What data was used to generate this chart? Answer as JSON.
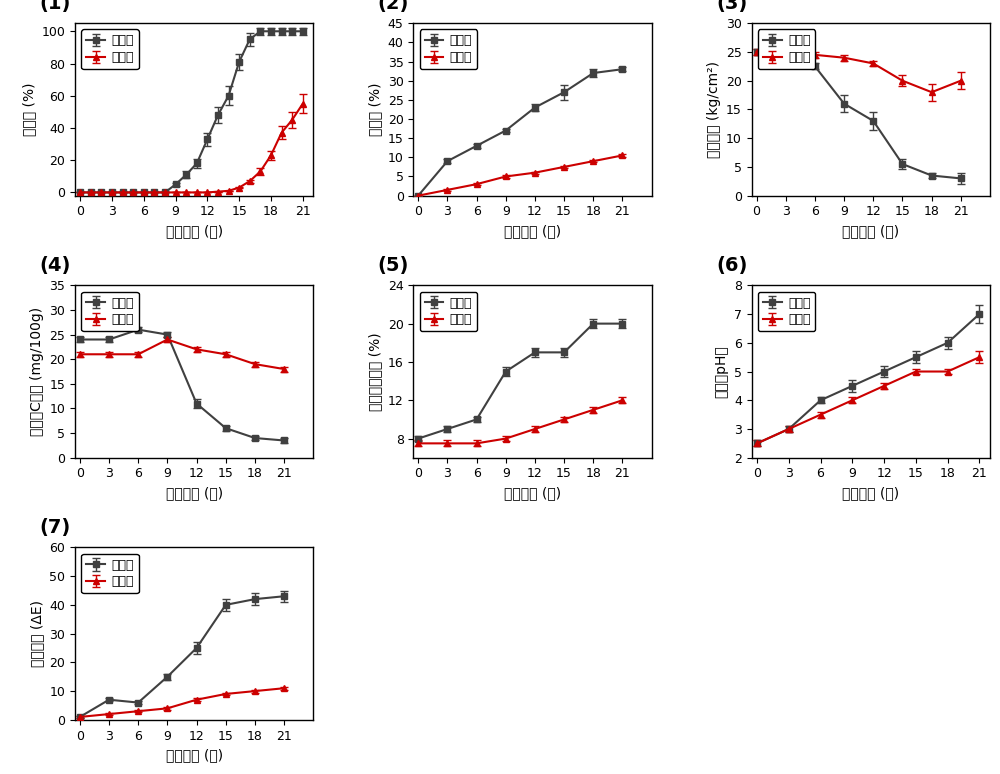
{
  "p1": {
    "title": "(1)",
    "xlabel": "储藏时间 (天)",
    "ylabel": "腐烂率 (%)",
    "xlim": [
      -0.5,
      22
    ],
    "ylim": [
      -2,
      105
    ],
    "xticks": [
      0,
      3,
      6,
      9,
      12,
      15,
      18,
      21
    ],
    "yticks": [
      0,
      20,
      40,
      60,
      80,
      100
    ],
    "ctrl_x": [
      0,
      1,
      2,
      3,
      4,
      5,
      6,
      7,
      8,
      9,
      10,
      11,
      12,
      13,
      14,
      15,
      16,
      17,
      18,
      19,
      20,
      21
    ],
    "ctrl_y": [
      0,
      0,
      0,
      0,
      0,
      0,
      0,
      0,
      0,
      5,
      11,
      18,
      33,
      48,
      60,
      81,
      95,
      100,
      100,
      100,
      100,
      100
    ],
    "ctrl_err": [
      0,
      0,
      0,
      0,
      0,
      0,
      0,
      0,
      0,
      1,
      2,
      3,
      4,
      5,
      6,
      5,
      4,
      2,
      2,
      2,
      2,
      2
    ],
    "fresh_x": [
      0,
      1,
      2,
      3,
      4,
      5,
      6,
      7,
      8,
      9,
      10,
      11,
      12,
      13,
      14,
      15,
      16,
      17,
      18,
      19,
      20,
      21
    ],
    "fresh_y": [
      0,
      0,
      0,
      0,
      0,
      0,
      0,
      0,
      0,
      0,
      0,
      0,
      0,
      0.5,
      1,
      3,
      7,
      13,
      23,
      37,
      45,
      55
    ],
    "fresh_err": [
      0,
      0,
      0,
      0,
      0,
      0,
      0,
      0,
      0,
      0,
      0,
      0,
      0,
      0,
      0,
      0.5,
      1,
      2,
      3,
      4,
      5,
      6
    ]
  },
  "p2": {
    "title": "(2)",
    "xlabel": "储藏时间 (天)",
    "ylabel": "失重率 (%)",
    "xlim": [
      -0.5,
      24
    ],
    "ylim": [
      0,
      45
    ],
    "xticks": [
      0,
      3,
      6,
      9,
      12,
      15,
      18,
      21
    ],
    "yticks": [
      0,
      5,
      10,
      15,
      20,
      25,
      30,
      35,
      40,
      45
    ],
    "ctrl_x": [
      0,
      3,
      6,
      9,
      12,
      15,
      18,
      21
    ],
    "ctrl_y": [
      0,
      9,
      13,
      17,
      23,
      27,
      32,
      33
    ],
    "ctrl_err": [
      0,
      0.5,
      0.5,
      0.5,
      1,
      2,
      1,
      0.5
    ],
    "fresh_x": [
      0,
      3,
      6,
      9,
      12,
      15,
      18,
      21
    ],
    "fresh_y": [
      0,
      1.5,
      3,
      5,
      6,
      7.5,
      9,
      10.5
    ],
    "fresh_err": [
      0,
      0.3,
      0.3,
      0.3,
      0.3,
      0.3,
      0.3,
      0.3
    ]
  },
  "p3": {
    "title": "(3)",
    "xlabel": "储藏时间 (天)",
    "ylabel": "芒果硬度 (kg/cm²)",
    "xlim": [
      -0.5,
      24
    ],
    "ylim": [
      0,
      30
    ],
    "xticks": [
      0,
      3,
      6,
      9,
      12,
      15,
      18,
      21
    ],
    "yticks": [
      0,
      5,
      10,
      15,
      20,
      25,
      30
    ],
    "ctrl_x": [
      0,
      3,
      6,
      9,
      12,
      15,
      18,
      21
    ],
    "ctrl_y": [
      25,
      23,
      22.5,
      16,
      13,
      5.5,
      3.5,
      3
    ],
    "ctrl_err": [
      0.5,
      0.5,
      0.5,
      1.5,
      1.5,
      0.8,
      0.5,
      1.0
    ],
    "fresh_x": [
      0,
      3,
      6,
      9,
      12,
      15,
      18,
      21
    ],
    "fresh_y": [
      25,
      24.5,
      24.5,
      24,
      23,
      20,
      18,
      20
    ],
    "fresh_err": [
      0.5,
      0.5,
      0.5,
      0.5,
      0.5,
      1.0,
      1.5,
      1.5
    ]
  },
  "p4": {
    "title": "(4)",
    "xlabel": "储藏时间 (天)",
    "ylabel": "维生素C含量 (mg/100g)",
    "xlim": [
      -0.5,
      24
    ],
    "ylim": [
      0,
      35
    ],
    "xticks": [
      0,
      3,
      6,
      9,
      12,
      15,
      18,
      21
    ],
    "yticks": [
      0,
      5,
      10,
      15,
      20,
      25,
      30,
      35
    ],
    "ctrl_x": [
      0,
      3,
      6,
      9,
      12,
      15,
      18,
      21
    ],
    "ctrl_y": [
      24,
      24,
      26,
      25,
      11,
      6,
      4,
      3.5
    ],
    "ctrl_err": [
      0.5,
      0.5,
      0.5,
      0.5,
      1,
      0.5,
      0.5,
      0.5
    ],
    "fresh_x": [
      0,
      3,
      6,
      9,
      12,
      15,
      18,
      21
    ],
    "fresh_y": [
      21,
      21,
      21,
      24,
      22,
      21,
      19,
      18
    ],
    "fresh_err": [
      0.5,
      0.5,
      0.5,
      0.5,
      0.5,
      0.5,
      0.5,
      0.5
    ]
  },
  "p5": {
    "title": "(5)",
    "xlabel": "储藏时间 (天)",
    "ylabel": "可溶性固含物 (%)",
    "xlim": [
      -0.5,
      24
    ],
    "ylim": [
      6,
      24
    ],
    "xticks": [
      0,
      3,
      6,
      9,
      12,
      15,
      18,
      21
    ],
    "yticks": [
      8,
      12,
      16,
      20,
      24
    ],
    "ctrl_x": [
      0,
      3,
      6,
      9,
      12,
      15,
      18,
      21
    ],
    "ctrl_y": [
      8,
      9,
      10,
      15,
      17,
      17,
      20,
      20
    ],
    "ctrl_err": [
      0.3,
      0.3,
      0.3,
      0.5,
      0.5,
      0.5,
      0.5,
      0.5
    ],
    "fresh_x": [
      0,
      3,
      6,
      9,
      12,
      15,
      18,
      21
    ],
    "fresh_y": [
      7.5,
      7.5,
      7.5,
      8,
      9,
      10,
      11,
      12
    ],
    "fresh_err": [
      0.3,
      0.3,
      0.3,
      0.3,
      0.3,
      0.3,
      0.3,
      0.3
    ]
  },
  "p6": {
    "title": "(6)",
    "xlabel": "储藏时间 (天)",
    "ylabel": "果肉的pH值",
    "xlim": [
      -0.5,
      22
    ],
    "ylim": [
      2,
      8
    ],
    "xticks": [
      0,
      3,
      6,
      9,
      12,
      15,
      18,
      21
    ],
    "yticks": [
      2,
      3,
      4,
      5,
      6,
      7,
      8
    ],
    "ctrl_x": [
      0,
      3,
      6,
      9,
      12,
      15,
      18,
      21
    ],
    "ctrl_y": [
      2.5,
      3,
      4,
      4.5,
      5,
      5.5,
      6,
      7
    ],
    "ctrl_err": [
      0.1,
      0.1,
      0.1,
      0.2,
      0.2,
      0.2,
      0.2,
      0.3
    ],
    "fresh_x": [
      0,
      3,
      6,
      9,
      12,
      15,
      18,
      21
    ],
    "fresh_y": [
      2.5,
      3,
      3.5,
      4,
      4.5,
      5,
      5,
      5.5
    ],
    "fresh_err": [
      0.1,
      0.1,
      0.1,
      0.1,
      0.1,
      0.1,
      0.1,
      0.2
    ]
  },
  "p7": {
    "title": "(7)",
    "xlabel": "储藏时间 (天)",
    "ylabel": "芒果褐变 (ΔE)",
    "xlim": [
      -0.5,
      24
    ],
    "ylim": [
      0,
      60
    ],
    "xticks": [
      0,
      3,
      6,
      9,
      12,
      15,
      18,
      21
    ],
    "yticks": [
      0,
      10,
      20,
      30,
      40,
      50,
      60
    ],
    "ctrl_x": [
      0,
      3,
      6,
      9,
      12,
      15,
      18,
      21
    ],
    "ctrl_y": [
      1,
      7,
      6,
      15,
      25,
      40,
      42,
      43
    ],
    "ctrl_err": [
      0.2,
      0.5,
      0.5,
      1,
      2,
      2,
      2,
      2
    ],
    "fresh_x": [
      0,
      3,
      6,
      9,
      12,
      15,
      18,
      21
    ],
    "fresh_y": [
      1,
      2,
      3,
      4,
      7,
      9,
      10,
      11
    ],
    "fresh_err": [
      0.2,
      0.2,
      0.3,
      0.5,
      0.5,
      0.5,
      0.5,
      0.5
    ]
  },
  "ctrl_color": "#404040",
  "fresh_color": "#cc0000",
  "ctrl_label": "对照组",
  "fresh_label": "保鲜组",
  "ctrl_marker": "s",
  "fresh_marker": "^",
  "linewidth": 1.5,
  "markersize": 5,
  "capsize": 3,
  "elinewidth": 1.0,
  "label_fontsize": 10,
  "tick_fontsize": 9,
  "legend_fontsize": 9,
  "title_fontsize": 14
}
